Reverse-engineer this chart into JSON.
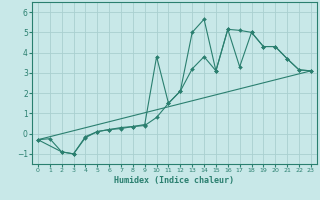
{
  "xlabel": "Humidex (Indice chaleur)",
  "xlim": [
    -0.5,
    23.5
  ],
  "ylim": [
    -1.5,
    6.5
  ],
  "yticks": [
    -1,
    0,
    1,
    2,
    3,
    4,
    5,
    6
  ],
  "xticks": [
    0,
    1,
    2,
    3,
    4,
    5,
    6,
    7,
    8,
    9,
    10,
    11,
    12,
    13,
    14,
    15,
    16,
    17,
    18,
    19,
    20,
    21,
    22,
    23
  ],
  "bg_color": "#c8e8e8",
  "grid_color": "#aad0d0",
  "line_color": "#2a7f6f",
  "line1_x": [
    0,
    1,
    2,
    3,
    4,
    5,
    6,
    7,
    8,
    9,
    10,
    11,
    12,
    13,
    14,
    15,
    16,
    17,
    18,
    19,
    20,
    21,
    22,
    23
  ],
  "line1_y": [
    -0.3,
    -0.25,
    -0.9,
    -1.0,
    -0.15,
    0.1,
    0.2,
    0.25,
    0.35,
    0.45,
    3.8,
    1.5,
    2.1,
    5.0,
    5.65,
    3.1,
    5.15,
    3.3,
    5.0,
    4.3,
    4.3,
    3.7,
    3.15,
    3.1
  ],
  "line2_x": [
    0,
    2,
    3,
    4,
    5,
    6,
    7,
    8,
    9,
    10,
    11,
    12,
    13,
    14,
    15,
    16,
    17,
    18,
    19,
    20,
    21,
    22,
    23
  ],
  "line2_y": [
    -0.3,
    -0.9,
    -1.0,
    -0.2,
    0.1,
    0.2,
    0.3,
    0.35,
    0.4,
    0.8,
    1.5,
    2.1,
    3.2,
    3.8,
    3.1,
    5.15,
    5.1,
    5.0,
    4.3,
    4.3,
    3.7,
    3.15,
    3.1
  ],
  "line3_x": [
    0,
    23
  ],
  "line3_y": [
    -0.3,
    3.1
  ]
}
